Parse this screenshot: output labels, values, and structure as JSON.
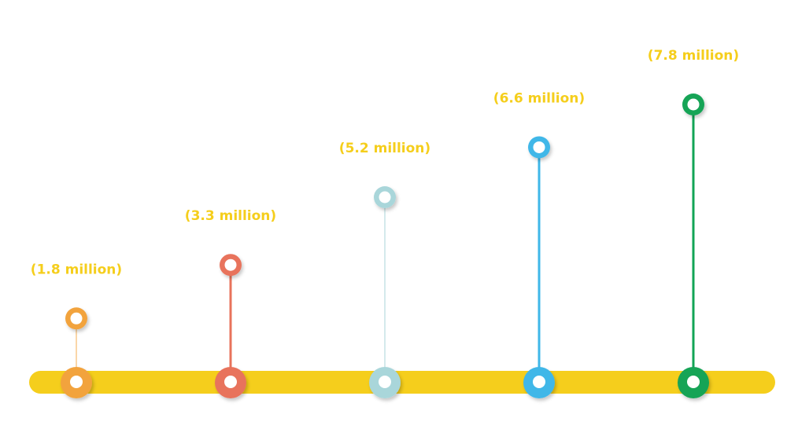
{
  "chart_data": {
    "type": "lollipop",
    "title": "",
    "xlabel": "",
    "ylabel": "",
    "ylim": [
      0,
      7.8
    ],
    "label_color": "#F5CE1C",
    "bar_color": "#F5CE1C",
    "points": [
      {
        "value": 1.8,
        "label": "(1.8 million)",
        "color": "#F2A33E"
      },
      {
        "value": 3.3,
        "label": "(3.3 million)",
        "color": "#E8735B"
      },
      {
        "value": 5.2,
        "label": "(5.2 million)",
        "color": "#A9D6DA"
      },
      {
        "value": 6.6,
        "label": "(6.6 million)",
        "color": "#3FB7E8"
      },
      {
        "value": 7.8,
        "label": "(7.8 million)",
        "color": "#12A456"
      }
    ]
  }
}
